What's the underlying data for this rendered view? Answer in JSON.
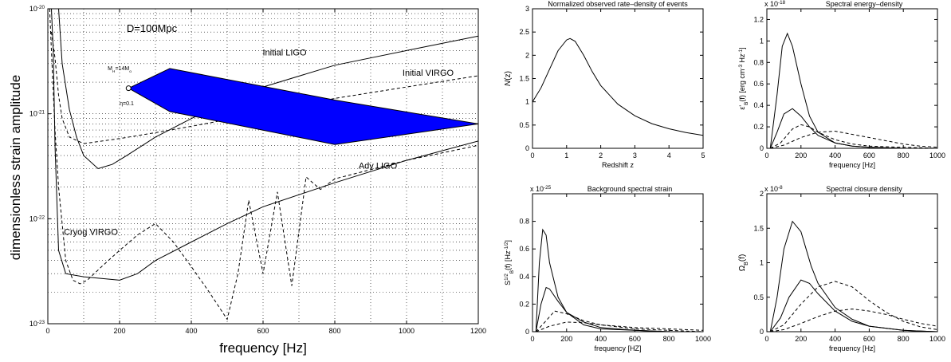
{
  "chart_data": [
    {
      "type": "line",
      "xlabel": "frequency [Hz]",
      "ylabel": "dimensionless strain amplitude",
      "xlim": [
        0,
        1200
      ],
      "ylim": [
        1e-23,
        1e-20
      ],
      "yscale": "log",
      "grid": true,
      "xticks": [
        0,
        200,
        400,
        600,
        800,
        1000,
        1200
      ],
      "yticks": [
        "10^-23",
        "10^-22",
        "10^-21",
        "10^-20"
      ],
      "annotations": [
        {
          "text": "D=100Mpc",
          "x": 290,
          "y": 6e-21
        },
        {
          "text": "Initial LIGO",
          "x": 660,
          "y": 3.6e-21
        },
        {
          "text": "Initial VIRGO",
          "x": 1060,
          "y": 2.3e-21
        },
        {
          "text": "Adv LIGO",
          "x": 920,
          "y": 3e-22
        },
        {
          "text": "Cryog VIRGO",
          "x": 120,
          "y": 7e-23
        },
        {
          "text": "M_H=14M_o",
          "x": 200,
          "y": 2.6e-21
        },
        {
          "text": "η=0.1",
          "x": 220,
          "y": 1.2e-21
        }
      ],
      "series": [
        {
          "name": "Initial LIGO",
          "style": "solid",
          "x": [
            30,
            40,
            60,
            80,
            100,
            140,
            180,
            220,
            300,
            400,
            500,
            600,
            800,
            1000,
            1200
          ],
          "y": [
            1e-20,
            3e-21,
            1.1e-21,
            6e-22,
            4e-22,
            3e-22,
            3.3e-22,
            4e-22,
            6e-22,
            9e-22,
            1.3e-21,
            1.8e-21,
            2.9e-21,
            4e-21,
            5.5e-21
          ]
        },
        {
          "name": "Initial VIRGO",
          "style": "dashed",
          "x": [
            10,
            20,
            30,
            40,
            60,
            100,
            200,
            300,
            400,
            500,
            600,
            800,
            1000,
            1200
          ],
          "y": [
            6e-21,
            3.4e-21,
            1.5e-21,
            9e-22,
            6e-22,
            5.2e-22,
            5.8e-22,
            6.6e-22,
            7.6e-22,
            8.8e-22,
            1e-21,
            1.4e-21,
            1.8e-21,
            2.3e-21
          ]
        },
        {
          "name": "Adv LIGO",
          "style": "solid",
          "x": [
            10,
            15,
            20,
            30,
            50,
            100,
            150,
            200,
            250,
            300,
            400,
            500,
            600,
            800,
            1000,
            1200
          ],
          "y": [
            1e-20,
            4e-21,
            5e-22,
            5e-23,
            3e-23,
            2.8e-23,
            2.7e-23,
            2.6e-23,
            3e-23,
            4e-23,
            6e-23,
            9e-23,
            1.3e-22,
            2.2e-22,
            3.6e-22,
            5.5e-22
          ]
        },
        {
          "name": "Cryog VIRGO",
          "style": "dashed",
          "x": [
            5,
            10,
            20,
            30,
            50,
            70,
            90,
            110,
            150,
            200,
            250,
            300,
            350,
            400,
            450,
            500,
            530,
            560,
            600,
            640,
            680,
            720,
            760,
            800,
            1000,
            1200
          ],
          "y": [
            1e-20,
            4e-21,
            7e-22,
            2e-22,
            4e-23,
            2.6e-23,
            2.4e-23,
            2.6e-23,
            3.5e-23,
            5e-23,
            7e-23,
            9e-23,
            6e-23,
            3.5e-23,
            2e-23,
            1.1e-23,
            3e-23,
            1.5e-22,
            3e-23,
            1.8e-22,
            2.3e-23,
            2.5e-22,
            1.9e-22,
            2.4e-22,
            3.6e-22,
            5e-22
          ]
        },
        {
          "name": "band",
          "style": "fill",
          "x": [
            225,
            340,
            800,
            1200,
            800,
            340,
            225
          ],
          "y": [
            1.75e-21,
            2.7e-21,
            1.35e-21,
            8e-22,
            5.1e-22,
            1.05e-21,
            1.75e-21
          ]
        }
      ]
    },
    {
      "type": "line",
      "title": "Normalized observed rate–density of events",
      "xlabel": "Redshift z",
      "ylabel": "N(z)",
      "xlim": [
        0,
        5
      ],
      "ylim": [
        0,
        3
      ],
      "xticks": [
        0,
        1,
        2,
        3,
        4,
        5
      ],
      "yticks": [
        0,
        0.5,
        1,
        1.5,
        2,
        2.5,
        3
      ],
      "grid": false,
      "series": [
        {
          "style": "solid",
          "x": [
            0,
            0.25,
            0.5,
            0.75,
            1,
            1.1,
            1.25,
            1.5,
            1.75,
            2,
            2.5,
            3,
            3.5,
            4,
            4.5,
            5
          ],
          "y": [
            1,
            1.3,
            1.7,
            2.1,
            2.33,
            2.36,
            2.3,
            2.0,
            1.65,
            1.35,
            0.95,
            0.7,
            0.53,
            0.42,
            0.34,
            0.28
          ]
        }
      ]
    },
    {
      "type": "line",
      "title": "Spectral energy–density",
      "multiplier": "x 10^-18",
      "xlabel": "frequency [Hz]",
      "ylabel": "ε'_B(f) [erg cm^-3 Hz^-1]",
      "xlim": [
        0,
        1000
      ],
      "ylim": [
        0,
        1.3
      ],
      "xticks": [
        0,
        200,
        400,
        600,
        800,
        1000
      ],
      "yticks": [
        0,
        0.2,
        0.4,
        0.6,
        0.8,
        1,
        1.2
      ],
      "grid": false,
      "series": [
        {
          "style": "solid",
          "x": [
            20,
            60,
            90,
            120,
            150,
            200,
            250,
            300,
            400,
            500,
            600,
            800,
            1000
          ],
          "y": [
            0,
            0.5,
            0.95,
            1.07,
            0.95,
            0.6,
            0.3,
            0.15,
            0.05,
            0.02,
            0.01,
            0,
            0
          ]
        },
        {
          "style": "solid",
          "x": [
            20,
            60,
            100,
            150,
            200,
            250,
            300,
            400,
            500,
            600,
            800,
            1000
          ],
          "y": [
            0,
            0.15,
            0.32,
            0.37,
            0.3,
            0.2,
            0.12,
            0.05,
            0.02,
            0.01,
            0,
            0
          ]
        },
        {
          "style": "dashed",
          "x": [
            20,
            80,
            150,
            200,
            250,
            300,
            400,
            500,
            600,
            800,
            1000
          ],
          "y": [
            0,
            0.05,
            0.18,
            0.22,
            0.2,
            0.15,
            0.08,
            0.04,
            0.02,
            0.01,
            0
          ]
        },
        {
          "style": "dashed",
          "x": [
            20,
            100,
            200,
            300,
            400,
            500,
            600,
            700,
            800,
            900,
            1000
          ],
          "y": [
            0,
            0.03,
            0.1,
            0.15,
            0.16,
            0.13,
            0.1,
            0.07,
            0.04,
            0.02,
            0.01
          ]
        }
      ]
    },
    {
      "type": "line",
      "title": "Background spectral strain",
      "multiplier": "x 10^-25",
      "xlabel": "frequency [HZ]",
      "ylabel": "S^{1/2}_B(f) [Hz^-1/2]",
      "xlim": [
        0,
        1000
      ],
      "ylim": [
        0,
        1
      ],
      "xticks": [
        0,
        200,
        400,
        600,
        800,
        1000
      ],
      "yticks": [
        0,
        0.2,
        0.4,
        0.6,
        0.8
      ],
      "grid": false,
      "series": [
        {
          "style": "solid",
          "x": [
            20,
            40,
            60,
            80,
            100,
            150,
            200,
            300,
            400,
            600,
            800,
            1000
          ],
          "y": [
            0,
            0.5,
            0.74,
            0.7,
            0.5,
            0.25,
            0.14,
            0.05,
            0.02,
            0.01,
            0,
            0
          ]
        },
        {
          "style": "solid",
          "x": [
            20,
            50,
            80,
            100,
            150,
            200,
            300,
            400,
            600,
            800,
            1000
          ],
          "y": [
            0,
            0.2,
            0.32,
            0.31,
            0.22,
            0.14,
            0.07,
            0.03,
            0.01,
            0,
            0
          ]
        },
        {
          "style": "dashed",
          "x": [
            20,
            80,
            130,
            200,
            300,
            400,
            600,
            800,
            1000
          ],
          "y": [
            0,
            0.08,
            0.15,
            0.13,
            0.08,
            0.05,
            0.02,
            0.01,
            0
          ]
        },
        {
          "style": "dashed",
          "x": [
            20,
            100,
            200,
            300,
            400,
            600,
            800,
            1000
          ],
          "y": [
            0,
            0.04,
            0.07,
            0.065,
            0.05,
            0.03,
            0.02,
            0.01
          ]
        }
      ]
    },
    {
      "type": "line",
      "title": "Spectral closure density",
      "multiplier": "x 10^-8",
      "xlabel": "frequency [Hz]",
      "ylabel": "Ω_B(f)",
      "xlim": [
        0,
        1000
      ],
      "ylim": [
        0,
        2
      ],
      "xticks": [
        0,
        200,
        400,
        600,
        800,
        1000
      ],
      "yticks": [
        0,
        0.5,
        1,
        1.5,
        2
      ],
      "grid": false,
      "series": [
        {
          "style": "solid",
          "x": [
            20,
            60,
            100,
            150,
            200,
            230,
            260,
            300,
            400,
            500,
            600,
            800,
            1000
          ],
          "y": [
            0,
            0.5,
            1.2,
            1.6,
            1.45,
            1.2,
            0.95,
            0.7,
            0.35,
            0.18,
            0.08,
            0.02,
            0
          ]
        },
        {
          "style": "solid",
          "x": [
            20,
            80,
            130,
            200,
            250,
            300,
            400,
            500,
            600,
            800,
            1000
          ],
          "y": [
            0,
            0.2,
            0.5,
            0.75,
            0.7,
            0.55,
            0.3,
            0.15,
            0.08,
            0.02,
            0
          ]
        },
        {
          "style": "dashed",
          "x": [
            20,
            100,
            200,
            300,
            400,
            500,
            600,
            700,
            800,
            900,
            1000
          ],
          "y": [
            0,
            0.1,
            0.4,
            0.65,
            0.73,
            0.65,
            0.45,
            0.28,
            0.15,
            0.07,
            0.03
          ]
        },
        {
          "style": "dashed",
          "x": [
            20,
            100,
            200,
            300,
            400,
            500,
            600,
            700,
            800,
            900,
            1000
          ],
          "y": [
            0,
            0.03,
            0.12,
            0.22,
            0.3,
            0.33,
            0.3,
            0.25,
            0.18,
            0.12,
            0.08
          ]
        }
      ]
    }
  ]
}
